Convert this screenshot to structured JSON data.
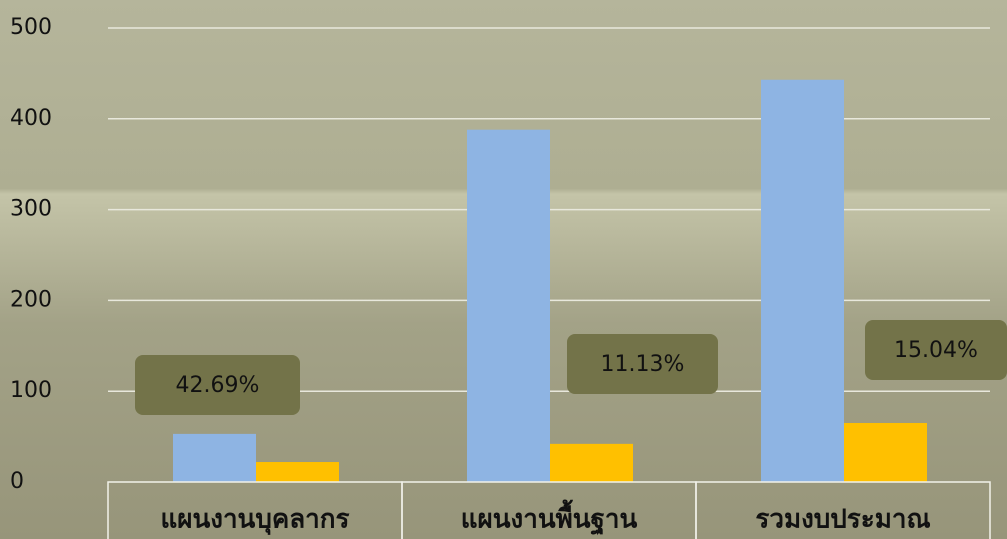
{
  "chart_data": {
    "type": "bar",
    "categories": [
      "แผนงานบุคลากร",
      "แผนงานพื้นฐาน",
      "รวมงบประมาณ"
    ],
    "series": [
      {
        "color": "#8eb4e3",
        "values": [
          53,
          388,
          443
        ]
      },
      {
        "color": "#ffc000",
        "values": [
          22,
          42,
          65
        ]
      }
    ],
    "annotations": [
      "42.69%",
      "11.13%",
      "15.04%"
    ],
    "ylim": [
      0,
      500
    ],
    "yticks": [
      0,
      100,
      200,
      300,
      400,
      500
    ],
    "grid": true
  }
}
